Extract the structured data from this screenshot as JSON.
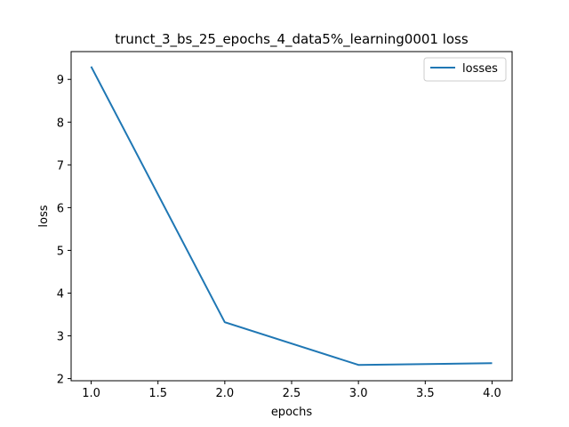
{
  "chart_data": {
    "type": "line",
    "title": "trunct_3_bs_25_epochs_4_data5%_learning0001 loss",
    "xlabel": "epochs",
    "ylabel": "loss",
    "xlim": [
      0.85,
      4.15
    ],
    "ylim": [
      1.95,
      9.65
    ],
    "xticks": [
      "1.0",
      "1.5",
      "2.0",
      "2.5",
      "3.0",
      "3.5",
      "4.0"
    ],
    "yticks": [
      "2",
      "3",
      "4",
      "5",
      "6",
      "7",
      "8",
      "9"
    ],
    "grid": false,
    "legend_position": "top-right",
    "series": [
      {
        "name": "losses",
        "color": "#1f77b4",
        "x": [
          1.0,
          2.0,
          3.0,
          4.0
        ],
        "y": [
          9.3,
          3.32,
          2.32,
          2.36
        ]
      }
    ]
  }
}
